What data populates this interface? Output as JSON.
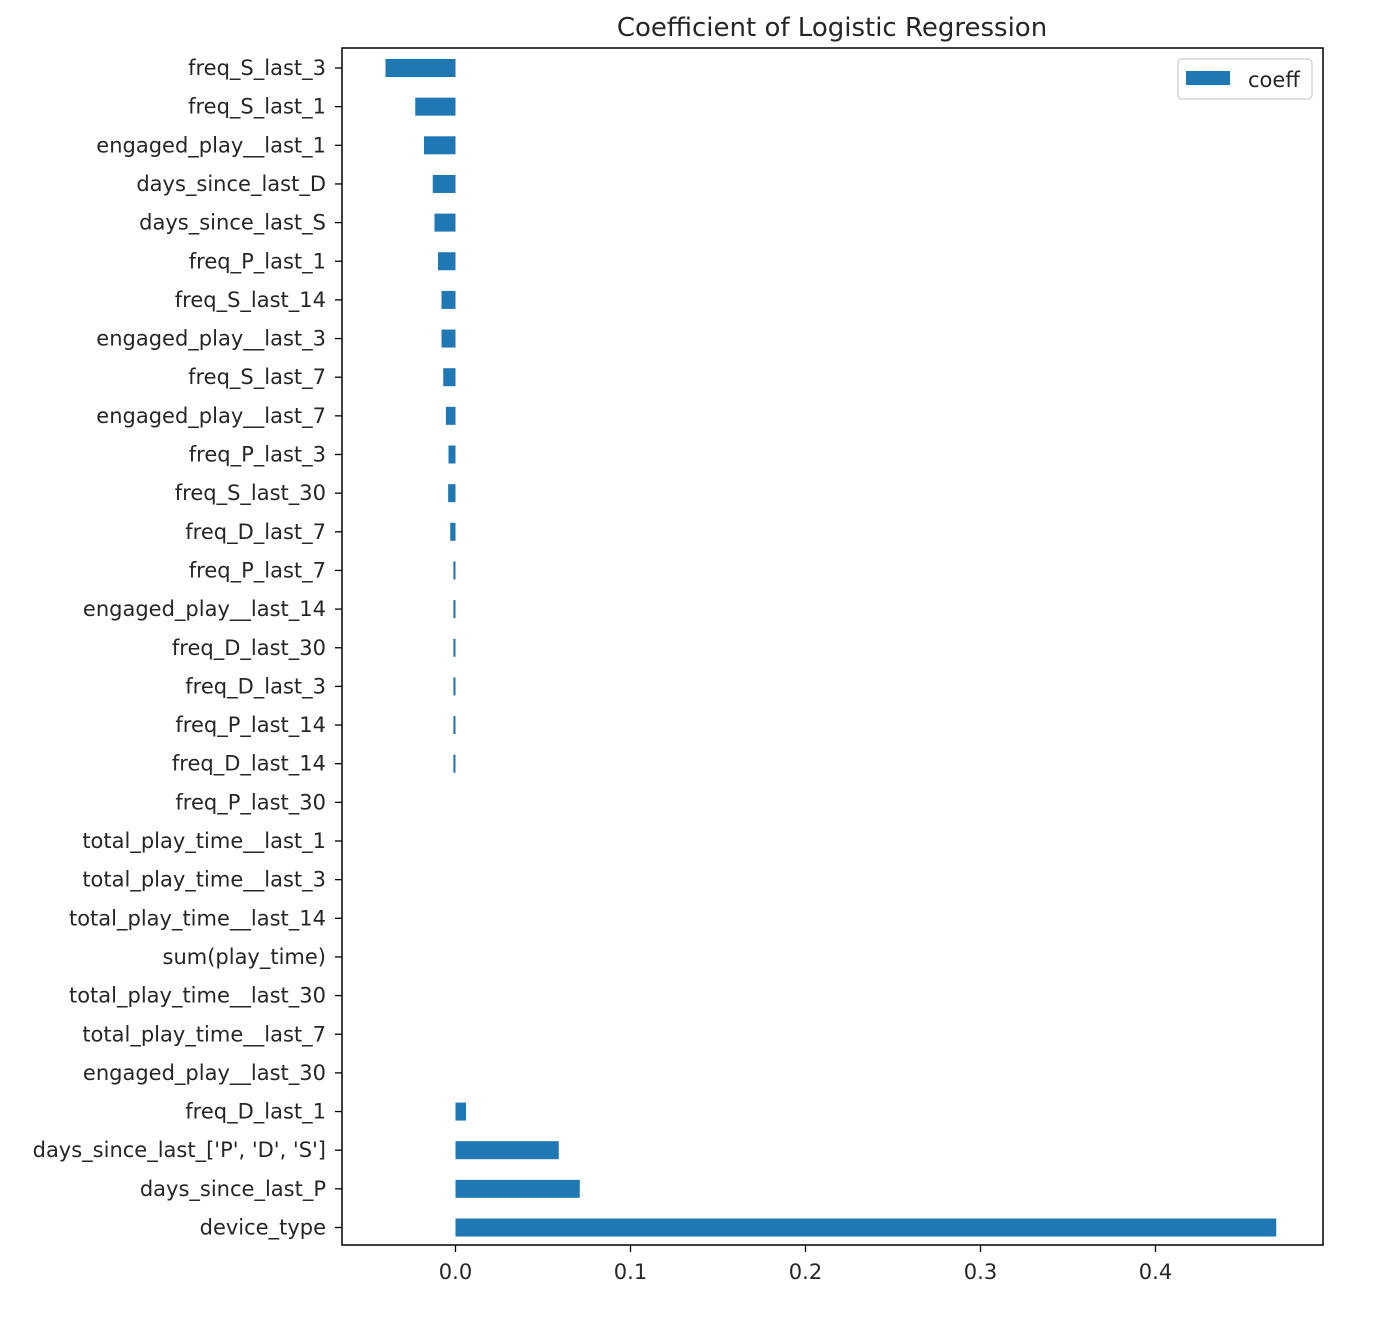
{
  "chart_data": {
    "type": "bar",
    "orientation": "horizontal",
    "title": "Coefficient of Logistic Regression",
    "xlabel": "",
    "ylabel": "",
    "xlim": [
      -0.065,
      0.495
    ],
    "x_ticks": [
      0.0,
      0.1,
      0.2,
      0.3,
      0.4
    ],
    "x_tick_labels": [
      "0.0",
      "0.1",
      "0.2",
      "0.3",
      "0.4"
    ],
    "grid": false,
    "legend_position": "top-right",
    "categories": [
      "freq_S_last_3",
      "freq_S_last_1",
      "engaged_play__last_1",
      "days_since_last_D",
      "days_since_last_S",
      "freq_P_last_1",
      "freq_S_last_14",
      "engaged_play__last_3",
      "freq_S_last_7",
      "engaged_play__last_7",
      "freq_P_last_3",
      "freq_S_last_30",
      "freq_D_last_7",
      "freq_P_last_7",
      "engaged_play__last_14",
      "freq_D_last_30",
      "freq_D_last_3",
      "freq_P_last_14",
      "freq_D_last_14",
      "freq_P_last_30",
      "total_play_time__last_1",
      "total_play_time__last_3",
      "total_play_time__last_14",
      "sum(play_time)",
      "total_play_time__last_30",
      "total_play_time__last_7",
      "engaged_play__last_30",
      "freq_D_last_1",
      "days_since_last_['P', 'D', 'S']",
      "days_since_last_P",
      "device_type"
    ],
    "series": [
      {
        "name": "coeff",
        "color": "#1f77b4",
        "values": [
          -0.04,
          -0.023,
          -0.018,
          -0.013,
          -0.012,
          -0.01,
          -0.008,
          -0.008,
          -0.007,
          -0.0055,
          -0.004,
          -0.0042,
          -0.003,
          -0.0012,
          -0.0012,
          -0.0012,
          -0.0012,
          -0.0012,
          -0.0012,
          0.0,
          0.0,
          0.0,
          0.0,
          0.0,
          0.0,
          0.0,
          0.0,
          0.006,
          0.059,
          0.071,
          0.469
        ]
      }
    ]
  }
}
